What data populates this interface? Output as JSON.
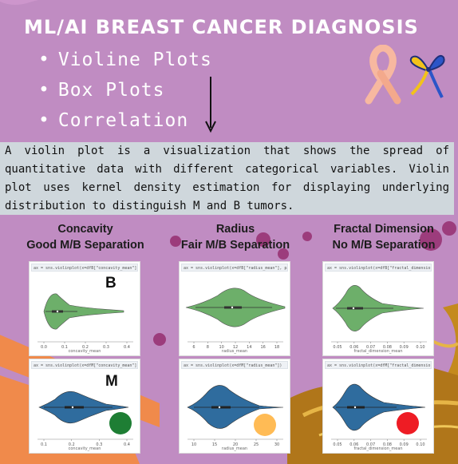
{
  "title": "ML/AI BREAST CANCER DIAGNOSIS",
  "bullets": [
    "Violine Plots",
    "Box Plots",
    "Correlation"
  ],
  "description": "A violin plot is a visualization that shows the spread of quantitative data with different categorical variables. Violin plot uses kernel density estimation for displaying underlying distribution to distinguish M and B tumors.",
  "columns": [
    {
      "feature": "Concavity",
      "separation": "Good M/B Separation",
      "code_b": "ax = sns.violinplot(x=dfB[\"concavity_mean\"], palette",
      "code_m": "ax = sns.violinplot(x=dfM[\"concavity_mean\"])",
      "xlabel": "concavity_mean",
      "ticks_b": [
        "0.0",
        "0.1",
        "0.2",
        "0.3",
        "0.4"
      ],
      "ticks_m": [
        "0.1",
        "0.2",
        "0.3",
        "0.4"
      ],
      "indicator_color": "#1e7e34"
    },
    {
      "feature": "Radius",
      "separation": "Fair M/B Separation",
      "code_b": "ax = sns.violinplot(x=dfB[\"radius_mean\"], palette",
      "code_m": "ax = sns.violinplot(x=dfM[\"radius_mean\"])",
      "xlabel": "radius_mean",
      "ticks_b": [
        "6",
        "8",
        "10",
        "12",
        "14",
        "16",
        "18"
      ],
      "ticks_m": [
        "10",
        "15",
        "20",
        "25",
        "30"
      ],
      "indicator_color": "#ffbb55"
    },
    {
      "feature": "Fractal Dimension",
      "separation": "No M/B Separation",
      "code_b": "ax = sns.violinplot(x=dfB[\"fractal_dimension_mean",
      "code_m": "ax = sns.violinplot(x=dfM[\"fractal_dimension_mean",
      "xlabel": "fractal_dimension_mean",
      "ticks_b": [
        "0.05",
        "0.06",
        "0.07",
        "0.08",
        "0.09",
        "0.10"
      ],
      "ticks_m": [
        "0.05",
        "0.06",
        "0.07",
        "0.08",
        "0.09",
        "0.10"
      ],
      "indicator_color": "#ee1c24"
    }
  ],
  "labels": {
    "benign": "B",
    "malignant": "M"
  },
  "colors": {
    "background": "#c08cc2",
    "benign_violin": "#6daf6a",
    "malignant_violin": "#2f6c9e",
    "description_box": "#cfd7dc"
  },
  "icons": [
    "awareness-ribbon-peach",
    "awareness-ribbon-blue-yellow",
    "down-arrow"
  ]
}
